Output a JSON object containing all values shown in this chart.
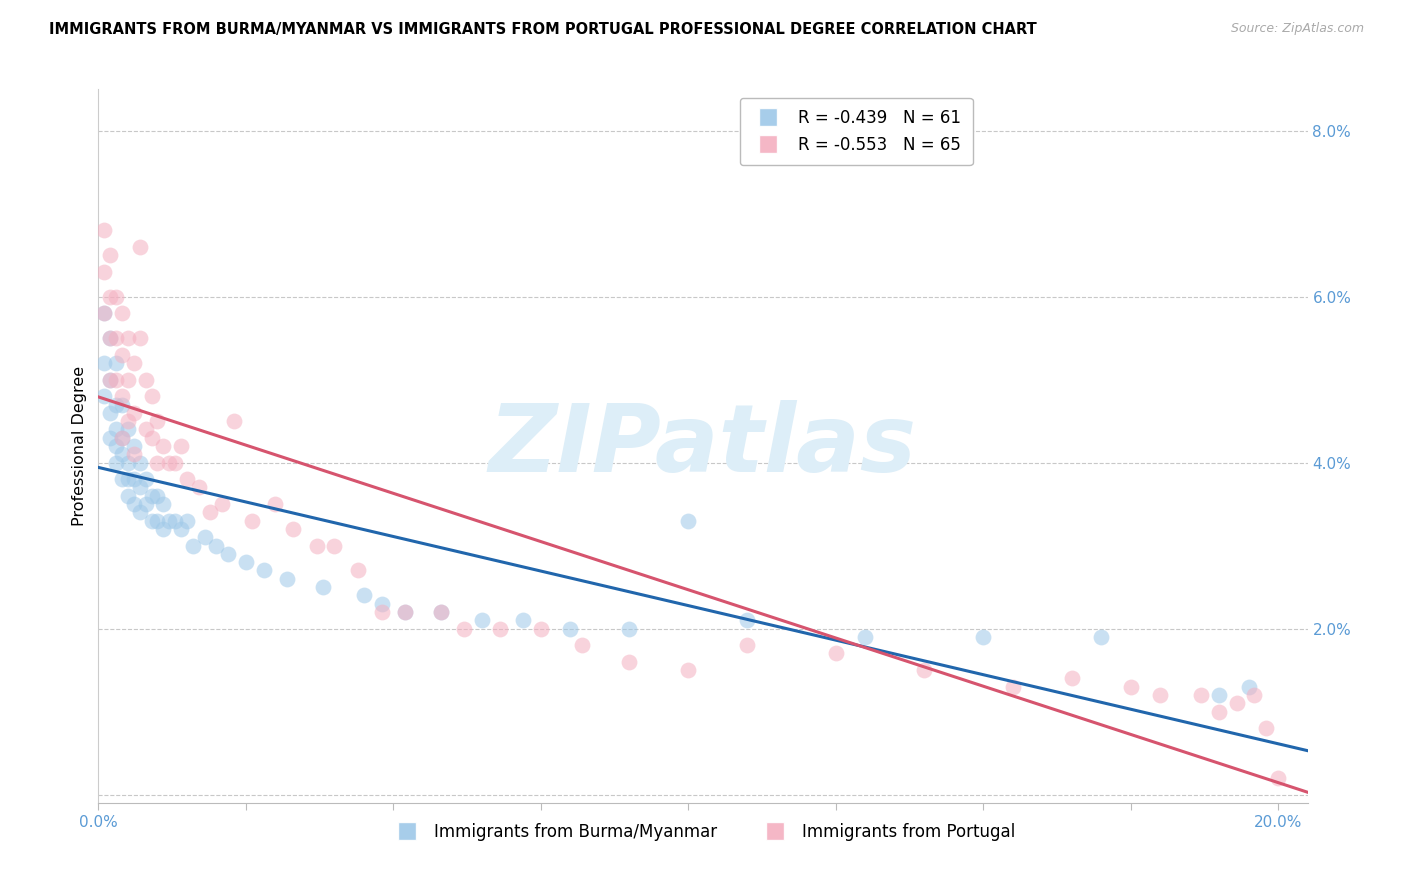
{
  "title": "IMMIGRANTS FROM BURMA/MYANMAR VS IMMIGRANTS FROM PORTUGAL PROFESSIONAL DEGREE CORRELATION CHART",
  "source": "Source: ZipAtlas.com",
  "ylabel": "Professional Degree",
  "xlim": [
    0.0,
    0.205
  ],
  "ylim": [
    -0.001,
    0.085
  ],
  "xlabel_ticks": [
    0.0,
    0.025,
    0.05,
    0.075,
    0.1,
    0.125,
    0.15,
    0.175,
    0.2
  ],
  "xlabel_tick_labels_show": {
    "0.0": "0.0%",
    "0.20": "20.0%"
  },
  "right_yticks": [
    0.0,
    0.02,
    0.04,
    0.06,
    0.08
  ],
  "right_ylabels": [
    "",
    "2.0%",
    "4.0%",
    "6.0%",
    "8.0%"
  ],
  "series1_color": "#9ec8e8",
  "series2_color": "#f4afc0",
  "series1_label": "Immigrants from Burma/Myanmar",
  "series2_label": "Immigrants from Portugal",
  "line1_color": "#2166ac",
  "line2_color": "#d6546e",
  "legend_r1": "R = -0.439",
  "legend_n1": "N = 61",
  "legend_r2": "R = -0.553",
  "legend_n2": "N = 65",
  "axis_color": "#5b9bd5",
  "grid_color": "#c8c8c8",
  "watermark_text": "ZIPatlas",
  "watermark_color": "#ddeef8",
  "marker_size": 130,
  "marker_alpha": 0.55,
  "title_fontsize": 10.5,
  "tick_fontsize": 11,
  "series1_x": [
    0.001,
    0.001,
    0.001,
    0.002,
    0.002,
    0.002,
    0.002,
    0.003,
    0.003,
    0.003,
    0.003,
    0.003,
    0.004,
    0.004,
    0.004,
    0.004,
    0.005,
    0.005,
    0.005,
    0.005,
    0.006,
    0.006,
    0.006,
    0.007,
    0.007,
    0.007,
    0.008,
    0.008,
    0.009,
    0.009,
    0.01,
    0.01,
    0.011,
    0.011,
    0.012,
    0.013,
    0.014,
    0.015,
    0.016,
    0.018,
    0.02,
    0.022,
    0.025,
    0.028,
    0.032,
    0.038,
    0.045,
    0.048,
    0.052,
    0.058,
    0.065,
    0.072,
    0.08,
    0.09,
    0.1,
    0.11,
    0.13,
    0.15,
    0.17,
    0.19,
    0.195
  ],
  "series1_y": [
    0.058,
    0.052,
    0.048,
    0.055,
    0.05,
    0.046,
    0.043,
    0.052,
    0.047,
    0.044,
    0.042,
    0.04,
    0.047,
    0.043,
    0.041,
    0.038,
    0.044,
    0.04,
    0.038,
    0.036,
    0.042,
    0.038,
    0.035,
    0.04,
    0.037,
    0.034,
    0.038,
    0.035,
    0.036,
    0.033,
    0.036,
    0.033,
    0.035,
    0.032,
    0.033,
    0.033,
    0.032,
    0.033,
    0.03,
    0.031,
    0.03,
    0.029,
    0.028,
    0.027,
    0.026,
    0.025,
    0.024,
    0.023,
    0.022,
    0.022,
    0.021,
    0.021,
    0.02,
    0.02,
    0.033,
    0.021,
    0.019,
    0.019,
    0.019,
    0.012,
    0.013
  ],
  "series2_x": [
    0.001,
    0.001,
    0.001,
    0.002,
    0.002,
    0.002,
    0.002,
    0.003,
    0.003,
    0.003,
    0.004,
    0.004,
    0.004,
    0.004,
    0.005,
    0.005,
    0.005,
    0.006,
    0.006,
    0.006,
    0.007,
    0.007,
    0.008,
    0.008,
    0.009,
    0.009,
    0.01,
    0.01,
    0.011,
    0.012,
    0.013,
    0.014,
    0.015,
    0.017,
    0.019,
    0.021,
    0.023,
    0.026,
    0.03,
    0.033,
    0.037,
    0.04,
    0.044,
    0.048,
    0.052,
    0.058,
    0.062,
    0.068,
    0.075,
    0.082,
    0.09,
    0.1,
    0.11,
    0.125,
    0.14,
    0.155,
    0.165,
    0.175,
    0.18,
    0.187,
    0.19,
    0.193,
    0.196,
    0.198,
    0.2
  ],
  "series2_y": [
    0.068,
    0.063,
    0.058,
    0.065,
    0.06,
    0.055,
    0.05,
    0.06,
    0.055,
    0.05,
    0.058,
    0.053,
    0.048,
    0.043,
    0.055,
    0.05,
    0.045,
    0.052,
    0.046,
    0.041,
    0.066,
    0.055,
    0.05,
    0.044,
    0.048,
    0.043,
    0.045,
    0.04,
    0.042,
    0.04,
    0.04,
    0.042,
    0.038,
    0.037,
    0.034,
    0.035,
    0.045,
    0.033,
    0.035,
    0.032,
    0.03,
    0.03,
    0.027,
    0.022,
    0.022,
    0.022,
    0.02,
    0.02,
    0.02,
    0.018,
    0.016,
    0.015,
    0.018,
    0.017,
    0.015,
    0.013,
    0.014,
    0.013,
    0.012,
    0.012,
    0.01,
    0.011,
    0.012,
    0.008,
    0.002
  ]
}
